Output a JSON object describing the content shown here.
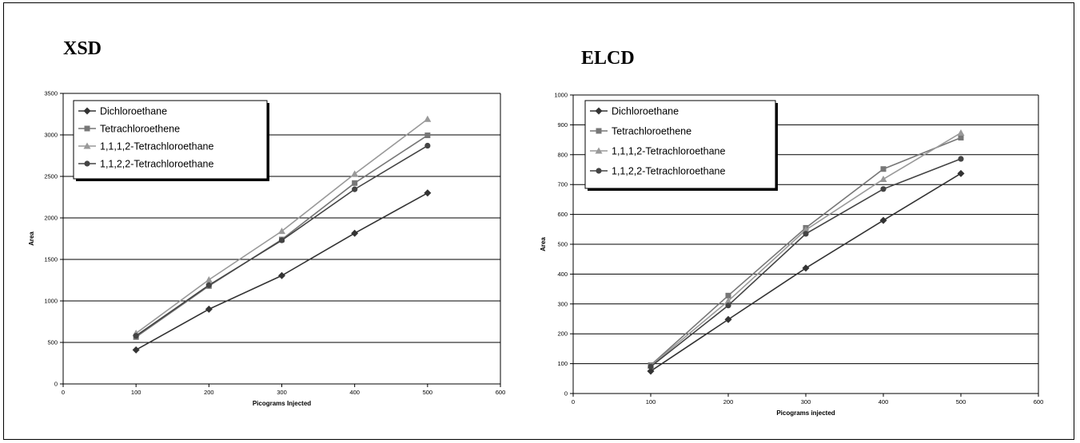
{
  "chart_data": [
    {
      "type": "line",
      "title": "XSD",
      "xlabel": "Picograms Injected",
      "ylabel": "Area",
      "xlim": [
        0,
        600
      ],
      "ylim": [
        0,
        3500
      ],
      "xticks": [
        "0",
        "100",
        "200",
        "300",
        "400",
        "500",
        "600"
      ],
      "yticks": [
        "0",
        "500",
        "1000",
        "1500",
        "2000",
        "2500",
        "3000",
        "3500"
      ],
      "grid": "horizontal",
      "legend_position": "top-left",
      "x": [
        100,
        200,
        300,
        400,
        500
      ],
      "series": [
        {
          "name": "Dichloroethane",
          "marker": "diamond",
          "color": "#333333",
          "values": [
            410,
            900,
            1305,
            1815,
            2300
          ]
        },
        {
          "name": "Tetrachloroethene",
          "marker": "square",
          "color": "#777777",
          "values": [
            565,
            1180,
            1740,
            2420,
            2995
          ]
        },
        {
          "name": "1,1,1,2-Tetrachloroethane",
          "marker": "triangle",
          "color": "#999999",
          "values": [
            610,
            1255,
            1840,
            2530,
            3190
          ]
        },
        {
          "name": "1,1,2,2-Tetrachloroethane",
          "marker": "circle",
          "color": "#444444",
          "values": [
            580,
            1190,
            1730,
            2345,
            2870
          ]
        }
      ]
    },
    {
      "type": "line",
      "title": "ELCD",
      "xlabel": "Picograms injected",
      "ylabel": "Area",
      "xlim": [
        0,
        600
      ],
      "ylim": [
        0,
        1000
      ],
      "xticks": [
        "0",
        "100",
        "200",
        "300",
        "400",
        "500",
        "600"
      ],
      "yticks": [
        "0",
        "100",
        "200",
        "300",
        "400",
        "500",
        "600",
        "700",
        "800",
        "900",
        "1000"
      ],
      "grid": "horizontal",
      "legend_position": "top-left",
      "x": [
        100,
        200,
        300,
        400,
        500
      ],
      "series": [
        {
          "name": "Dichloroethane",
          "marker": "diamond",
          "color": "#333333",
          "values": [
            75,
            248,
            420,
            580,
            737
          ]
        },
        {
          "name": "Tetrachloroethene",
          "marker": "square",
          "color": "#777777",
          "values": [
            95,
            328,
            555,
            752,
            857
          ]
        },
        {
          "name": "1,1,1,2-Tetrachloroethane",
          "marker": "triangle",
          "color": "#999999",
          "values": [
            93,
            310,
            548,
            718,
            873
          ]
        },
        {
          "name": "1,1,2,2-Tetrachloroethane",
          "marker": "circle",
          "color": "#444444",
          "values": [
            90,
            295,
            535,
            685,
            786
          ]
        }
      ]
    }
  ]
}
